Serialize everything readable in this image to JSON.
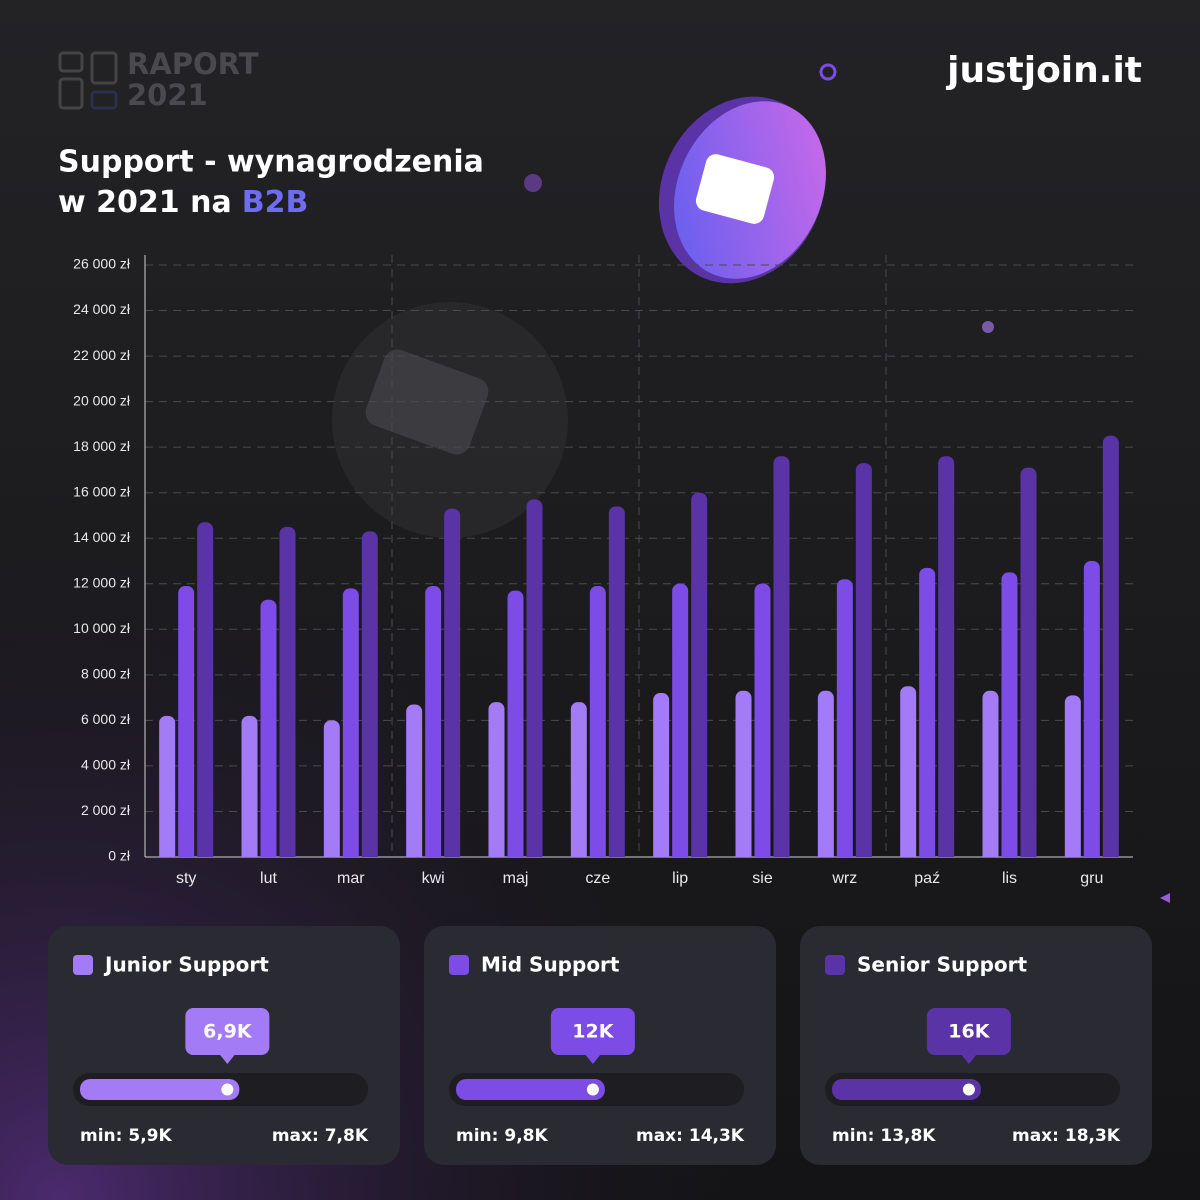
{
  "header": {
    "report_word": "RAPORT",
    "report_year": "2021",
    "brand": "justjoin.it"
  },
  "chart_data": {
    "type": "bar",
    "title_line1": "Support - wynagrodzenia",
    "title_line2": "w 2021 na",
    "title_highlight": "B2B",
    "categories": [
      "sty",
      "lut",
      "mar",
      "kwi",
      "maj",
      "cze",
      "lip",
      "sie",
      "wrz",
      "paź",
      "lis",
      "gru"
    ],
    "series": [
      {
        "name": "Junior Support",
        "color": "#a47bf6",
        "values": [
          6200,
          6200,
          6000,
          6700,
          6800,
          6800,
          7200,
          7300,
          7300,
          7500,
          7300,
          7100
        ],
        "avg": {
          "value": 6900,
          "label": "6,9K"
        },
        "min": {
          "value": 5900,
          "label": "min: 5,9K"
        },
        "max": {
          "value": 7800,
          "label": "max: 7,8K"
        }
      },
      {
        "name": "Mid Support",
        "color": "#7d4ce6",
        "values": [
          11900,
          11300,
          11800,
          11900,
          11700,
          11900,
          12000,
          12000,
          12200,
          12700,
          12500,
          13000
        ],
        "avg": {
          "value": 12000,
          "label": "12K"
        },
        "min": {
          "value": 9800,
          "label": "min: 9,8K"
        },
        "max": {
          "value": 14300,
          "label": "max: 14,3K"
        }
      },
      {
        "name": "Senior Support",
        "color": "#5a33a6",
        "values": [
          14700,
          14500,
          14300,
          15300,
          15700,
          15400,
          16000,
          17600,
          17300,
          17600,
          17100,
          18500
        ],
        "avg": {
          "value": 16000,
          "label": "16K"
        },
        "min": {
          "value": 13800,
          "label": "min: 13,8K"
        },
        "max": {
          "value": 18300,
          "label": "max: 18,3K"
        }
      }
    ],
    "ylim": [
      0,
      26000
    ],
    "yticks": [
      {
        "value": 0,
        "label": "0 zł"
      },
      {
        "value": 2000,
        "label": "2 000 zł"
      },
      {
        "value": 4000,
        "label": "4 000 zł"
      },
      {
        "value": 6000,
        "label": "6 000 zł"
      },
      {
        "value": 8000,
        "label": "8 000 zł"
      },
      {
        "value": 10000,
        "label": "10 000 zł"
      },
      {
        "value": 12000,
        "label": "12 000 zł"
      },
      {
        "value": 14000,
        "label": "14 000 zł"
      },
      {
        "value": 16000,
        "label": "16 000 zł"
      },
      {
        "value": 18000,
        "label": "18 000 zł"
      },
      {
        "value": 20000,
        "label": "20 000 zł"
      },
      {
        "value": 22000,
        "label": "22 000 zł"
      },
      {
        "value": 24000,
        "label": "24 000 zł"
      },
      {
        "value": 26000,
        "label": "26 000 zł"
      }
    ],
    "grid": true
  }
}
